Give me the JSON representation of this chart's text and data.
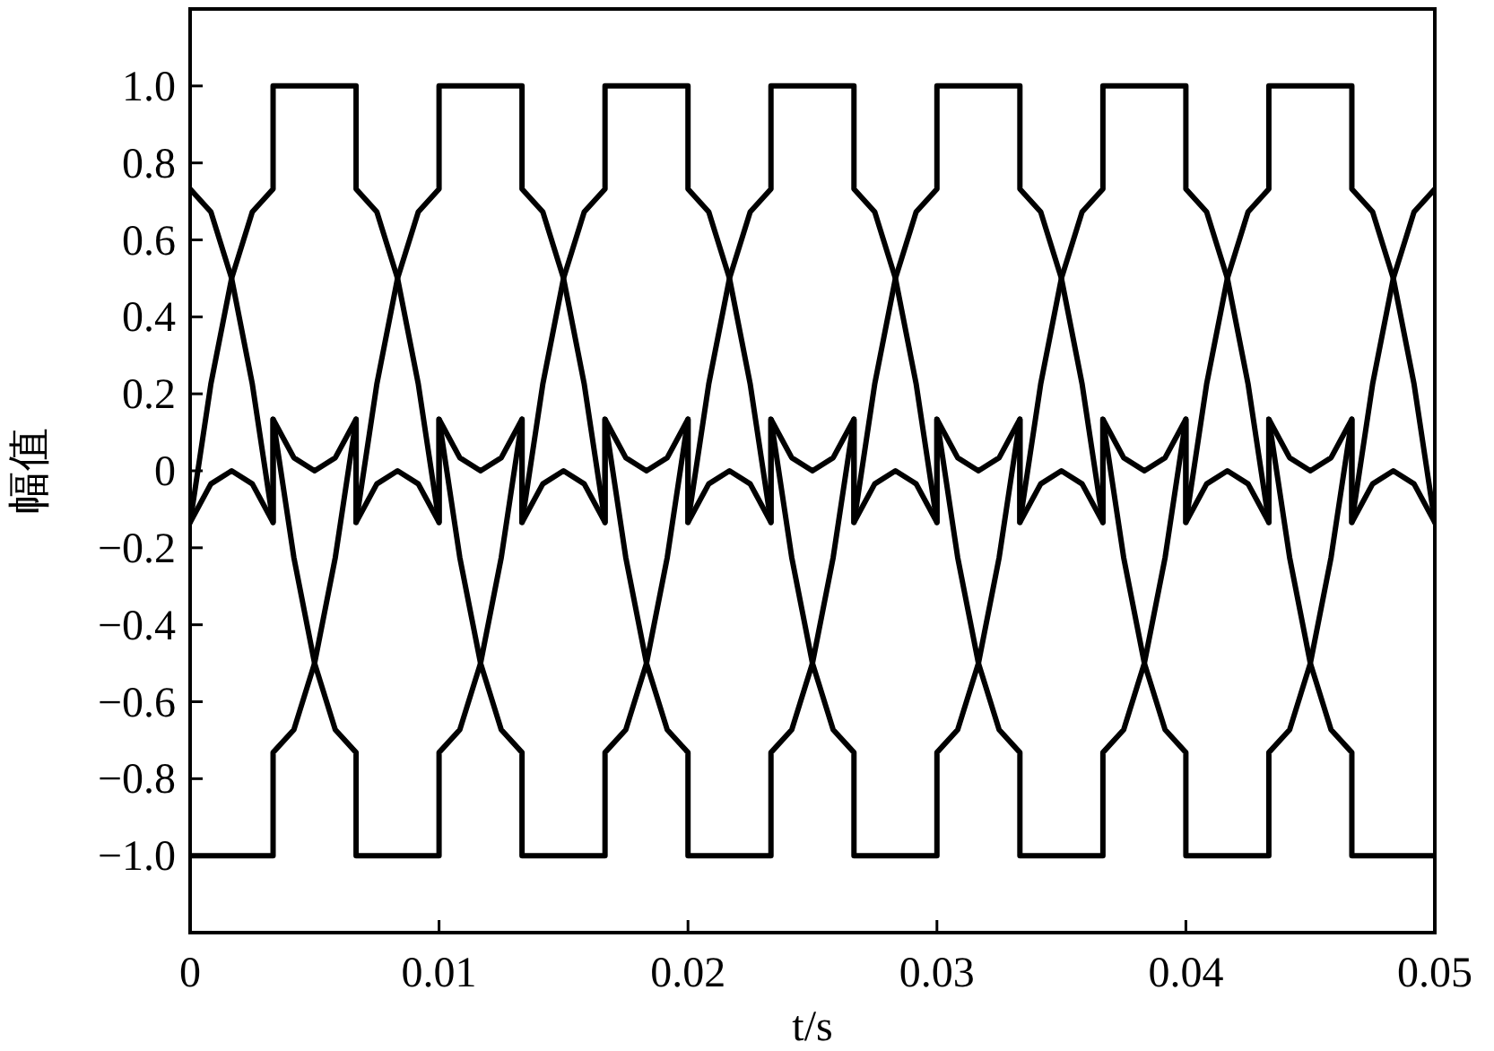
{
  "chart_data": {
    "type": "line",
    "xlabel": "t/s",
    "ylabel": "幅值",
    "xlim": [
      0,
      0.05
    ],
    "ylim": [
      -1.2,
      1.2
    ],
    "xticks": [
      0,
      0.01,
      0.02,
      0.03,
      0.04,
      0.05
    ],
    "yticks": [
      {
        "value": 1,
        "label": "1.0"
      },
      0.8,
      0.6,
      0.4,
      0.2,
      0,
      {
        "value": -0.2,
        "label": "−0.2"
      },
      {
        "value": -0.4,
        "label": "−0.4"
      },
      {
        "value": -0.6,
        "label": "−0.6"
      },
      {
        "value": -0.8,
        "label": "−0.8"
      },
      {
        "value": -1,
        "label": "−1.0"
      }
    ],
    "x": [
      0,
      0.000833,
      0.001667,
      0.0025,
      0.003333,
      0.003333,
      0.004167,
      0.005,
      0.005833,
      0.006667,
      0.006667,
      0.0075,
      0.008333,
      0.009167,
      0.01,
      0.01,
      0.010833,
      0.011667,
      0.0125,
      0.013333,
      0.013333,
      0.014167,
      0.015,
      0.015833,
      0.016667,
      0.016667,
      0.0175,
      0.018333,
      0.019167,
      0.02,
      0.02,
      0.020833,
      0.021667,
      0.0225,
      0.023333,
      0.023333,
      0.024167,
      0.025,
      0.025833,
      0.026667,
      0.026667,
      0.0275,
      0.028333,
      0.029167,
      0.03,
      0.03,
      0.030833,
      0.031667,
      0.0325,
      0.033333,
      0.033333,
      0.034167,
      0.035,
      0.035833,
      0.036667,
      0.036667,
      0.0375,
      0.038333,
      0.039167,
      0.04,
      0.04,
      0.040833,
      0.041667,
      0.0425,
      0.043333,
      0.043333,
      0.044167,
      0.045,
      0.045833,
      0.046667,
      0.046667,
      0.0475,
      0.048333,
      0.049167,
      0.05
    ],
    "series": [
      {
        "color": "#000000",
        "values": [
          -0.134,
          0.225,
          0.5,
          0.673,
          0.732,
          1,
          1,
          1,
          1,
          1,
          0.732,
          0.673,
          0.5,
          0.225,
          -0.134,
          0.134,
          -0.225,
          -0.5,
          -0.673,
          -0.732,
          -1,
          -1,
          -1,
          -1,
          -1,
          -0.732,
          -0.673,
          -0.5,
          -0.225,
          0.134,
          -0.134,
          0.225,
          0.5,
          0.673,
          0.732,
          1,
          1,
          1,
          1,
          1,
          0.732,
          0.673,
          0.5,
          0.225,
          -0.134,
          0.134,
          -0.225,
          -0.5,
          -0.673,
          -0.732,
          -1,
          -1,
          -1,
          -1,
          -1,
          -0.732,
          -0.673,
          -0.5,
          -0.225,
          0.134,
          -0.134,
          0.225,
          0.5,
          0.673,
          0.732,
          1,
          1,
          1,
          1,
          1,
          0.732,
          0.673,
          0.5,
          0.225,
          -0.134
        ]
      },
      {
        "color": "#000000",
        "values": [
          -1,
          -1,
          -1,
          -1,
          -1,
          -0.732,
          -0.673,
          -0.5,
          -0.225,
          0.134,
          -0.134,
          0.225,
          0.5,
          0.673,
          0.732,
          1,
          1,
          1,
          1,
          1,
          0.732,
          0.673,
          0.5,
          0.225,
          -0.134,
          0.134,
          -0.225,
          -0.5,
          -0.673,
          -0.732,
          -1,
          -1,
          -1,
          -1,
          -1,
          -0.732,
          -0.673,
          -0.5,
          -0.225,
          0.134,
          -0.134,
          0.225,
          0.5,
          0.673,
          0.732,
          1,
          1,
          1,
          1,
          1,
          0.732,
          0.673,
          0.5,
          0.225,
          -0.134,
          0.134,
          -0.225,
          -0.5,
          -0.673,
          -0.732,
          -1,
          -1,
          -1,
          -1,
          -1,
          -0.732,
          -0.673,
          -0.5,
          -0.225,
          0.134,
          -0.134,
          0.225,
          0.5,
          0.673,
          0.732
        ]
      },
      {
        "color": "#000000",
        "values": [
          0.732,
          0.673,
          0.5,
          0.225,
          -0.134,
          0.134,
          -0.225,
          -0.5,
          -0.673,
          -0.732,
          -1,
          -1,
          -1,
          -1,
          -1,
          -0.732,
          -0.673,
          -0.5,
          -0.225,
          0.134,
          -0.134,
          0.225,
          0.5,
          0.673,
          0.732,
          1,
          1,
          1,
          1,
          1,
          0.732,
          0.673,
          0.5,
          0.225,
          -0.134,
          0.134,
          -0.225,
          -0.5,
          -0.673,
          -0.732,
          -1,
          -1,
          -1,
          -1,
          -1,
          -0.732,
          -0.673,
          -0.5,
          -0.225,
          0.134,
          -0.134,
          0.225,
          0.5,
          0.673,
          0.732,
          1,
          1,
          1,
          1,
          1,
          0.732,
          0.673,
          0.5,
          0.225,
          -0.134,
          0.134,
          -0.225,
          -0.5,
          -0.673,
          -0.732,
          -1,
          -1,
          -1,
          -1,
          -1
        ]
      },
      {
        "color": "#000000",
        "values": [
          -0.134,
          -0.034,
          0,
          -0.034,
          -0.134,
          0.134,
          0.034,
          0,
          0.034,
          0.134,
          -0.134,
          -0.034,
          0,
          -0.034,
          -0.134,
          0.134,
          0.034,
          0,
          0.034,
          0.134,
          -0.134,
          -0.034,
          0,
          -0.034,
          -0.134,
          0.134,
          0.034,
          0,
          0.034,
          0.134,
          -0.134,
          -0.034,
          0,
          -0.034,
          -0.134,
          0.134,
          0.034,
          0,
          0.034,
          0.134,
          -0.134,
          -0.034,
          0,
          -0.034,
          -0.134,
          0.134,
          0.034,
          0,
          0.034,
          0.134,
          -0.134,
          -0.034,
          0,
          -0.034,
          -0.134,
          0.134,
          0.034,
          0,
          0.034,
          0.134,
          -0.134,
          -0.034,
          0,
          -0.034,
          -0.134,
          0.134,
          0.034,
          0,
          0.034,
          0.134,
          -0.134,
          -0.034,
          0,
          -0.034,
          -0.134
        ]
      }
    ]
  }
}
